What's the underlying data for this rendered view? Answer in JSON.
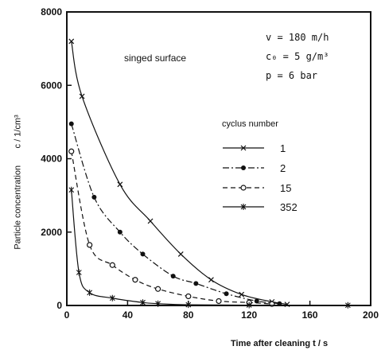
{
  "chart_data": {
    "type": "line",
    "xlabel": "Time after cleaning   t / s",
    "ylabel": "Particle concentration",
    "ylabel_unit": "c  / 1/cm³",
    "subtitle": "singed surface",
    "legend_title": "cyclus number",
    "parameters": [
      "v = 180 m/h",
      "c₀ = 5 g/m³",
      "p = 6 bar"
    ],
    "xlim": [
      0,
      200
    ],
    "ylim": [
      0,
      8000
    ],
    "xticks": [
      0,
      40,
      80,
      120,
      160,
      200
    ],
    "yticks": [
      0,
      2000,
      4000,
      6000,
      8000
    ],
    "legend_position": "right",
    "grid": false,
    "series": [
      {
        "name": "1",
        "marker": "x",
        "style": "solid-dash",
        "x": [
          3,
          10,
          35,
          55,
          75,
          95,
          115,
          135,
          145
        ],
        "y": [
          7200,
          5700,
          3300,
          2300,
          1400,
          700,
          300,
          100,
          30
        ]
      },
      {
        "name": "2",
        "marker": "filled-circle",
        "style": "dash-dot",
        "x": [
          3,
          18,
          35,
          50,
          70,
          85,
          105,
          125,
          140
        ],
        "y": [
          4950,
          2950,
          2000,
          1400,
          800,
          600,
          320,
          120,
          50
        ]
      },
      {
        "name": "15",
        "marker": "open-circle",
        "style": "dashed",
        "x": [
          3,
          15,
          30,
          45,
          60,
          80,
          100,
          120,
          135
        ],
        "y": [
          4200,
          1650,
          1100,
          700,
          450,
          250,
          120,
          80,
          40
        ]
      },
      {
        "name": "352",
        "marker": "asterisk",
        "style": "solid",
        "x": [
          3,
          8,
          15,
          30,
          50,
          60,
          80,
          120,
          185
        ],
        "y": [
          3150,
          900,
          350,
          200,
          80,
          50,
          20,
          10,
          5
        ]
      }
    ]
  }
}
